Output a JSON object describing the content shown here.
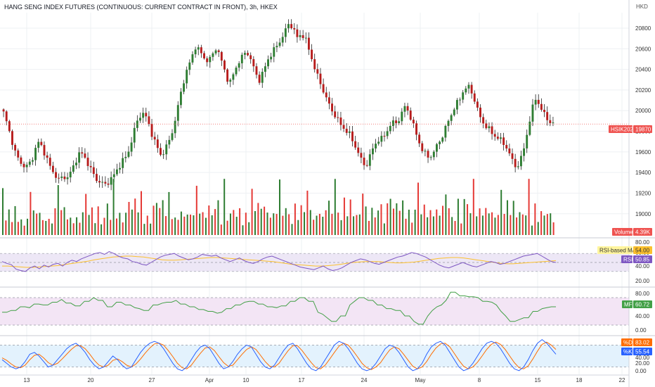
{
  "header": {
    "title": "HANG SENG INDEX FUTURES (CONTINUOUS: CURRENT CONTRACT IN FRONT), 3h, HKEX",
    "currency": "HKD"
  },
  "colors": {
    "up": "#26a69a",
    "down": "#ef5350",
    "volume_up": "#2e7d32",
    "volume_down": "#e53935",
    "rsi": "#7e57c2",
    "rsi_ma": "#fbc02d",
    "mfi": "#43a047",
    "k": "#2962ff",
    "d": "#ff6d00",
    "price_line": "#ef5350"
  },
  "chart_data": [
    {
      "type": "candlestick",
      "name": "price",
      "ylim": [
        18780,
        20950
      ],
      "yticks": [
        19000,
        19200,
        19400,
        19600,
        19800,
        20000,
        20200,
        20400,
        20600,
        20800
      ],
      "x_ticks": [
        "13",
        "20",
        "27",
        "Apr",
        "10",
        "17",
        "24",
        "May",
        "8",
        "15",
        "18",
        "22"
      ],
      "symbol_label": "HSIK2023",
      "last_price": 19870,
      "close_path": [
        19980,
        19850,
        19700,
        19560,
        19500,
        19450,
        19480,
        19560,
        19700,
        19650,
        19550,
        19450,
        19380,
        19330,
        19360,
        19350,
        19420,
        19520,
        19600,
        19550,
        19470,
        19390,
        19320,
        19300,
        19280,
        19330,
        19380,
        19450,
        19520,
        19560,
        19700,
        19860,
        19950,
        19980,
        19880,
        19750,
        19650,
        19560,
        19630,
        19720,
        19850,
        20050,
        20250,
        20380,
        20500,
        20620,
        20580,
        20520,
        20470,
        20540,
        20620,
        20500,
        20380,
        20250,
        20360,
        20460,
        20520,
        20580,
        20500,
        20380,
        20290,
        20380,
        20490,
        20560,
        20620,
        20680,
        20760,
        20850,
        20800,
        20700,
        20750,
        20680,
        20550,
        20420,
        20300,
        20200,
        20100,
        20000,
        19950,
        19870,
        19820,
        19790,
        19700,
        19620,
        19520,
        19450,
        19560,
        19660,
        19720,
        19730,
        19800,
        19880,
        19880,
        19920,
        20040,
        20000,
        19880,
        19760,
        19640,
        19580,
        19540,
        19600,
        19680,
        19750,
        19860,
        19950,
        20050,
        20100,
        20200,
        20240,
        20170,
        20050,
        19920,
        19860,
        19820,
        19760,
        19740,
        19700,
        19650,
        19560,
        19460,
        19480,
        19600,
        19800,
        20000,
        20130,
        20030,
        19960,
        19900,
        19870
      ],
      "volume_down_path": [
        0.15,
        0.25,
        0.5,
        0.2,
        0.55,
        0.35,
        0.3,
        0.6,
        0.25,
        0.4,
        0.95,
        0.3,
        0.65,
        0.5,
        0.35,
        0.45,
        0.75,
        0.3,
        0.55,
        0.4,
        0.85,
        0.5,
        0.35,
        0.7,
        0.45,
        0.6,
        0.4,
        0.9,
        0.5,
        0.35,
        0.7,
        0.55,
        0.4,
        0.75,
        0.5,
        0.65,
        0.35,
        0.85,
        0.55,
        0.45,
        0.6,
        0.4,
        0.7,
        0.5,
        0.35
      ],
      "volume_up_path": [
        0.7,
        0.2,
        0.5,
        0.35,
        0.65,
        0.25,
        0.45,
        0.3,
        0.85,
        0.4,
        0.55,
        0.3,
        0.85,
        0.25,
        0.5,
        0.6,
        0.35,
        0.8,
        0.45,
        0.3,
        0.55,
        0.4,
        0.75,
        0.35,
        0.5,
        0.3,
        0.9,
        0.45,
        0.35,
        0.6,
        0.3,
        0.85,
        0.5,
        0.4,
        0.55,
        0.3,
        0.85,
        0.45,
        0.6,
        0.35,
        0.8,
        0.5,
        0.3,
        0.4,
        0.25
      ],
      "volume_label": "Volume",
      "volume_value": "4.39K"
    },
    {
      "type": "line",
      "name": "rsi-pane",
      "ylim": [
        0,
        100
      ],
      "yticks": [
        "80.00",
        "60.00",
        "40.00",
        "20.00"
      ],
      "bands": [
        70,
        50,
        30
      ],
      "rsi_path": [
        52,
        48,
        45,
        35,
        32,
        30,
        38,
        42,
        36,
        44,
        40,
        46,
        48,
        42,
        50,
        55,
        52,
        58,
        62,
        66,
        70,
        72,
        68,
        74,
        70,
        64,
        60,
        58,
        52,
        50,
        46,
        44,
        50,
        56,
        62,
        66,
        68,
        70,
        64,
        60,
        56,
        58,
        62,
        68,
        66,
        64,
        66,
        60,
        56,
        52,
        56,
        60,
        54,
        50,
        48,
        52,
        58,
        62,
        64,
        60,
        56,
        52,
        48,
        44,
        40,
        38,
        36,
        34,
        38,
        42,
        36,
        32,
        34,
        38,
        44,
        50,
        54,
        58,
        56,
        52,
        48,
        46,
        50,
        54,
        58,
        62,
        64,
        68,
        72,
        70,
        66,
        62,
        56,
        50,
        44,
        40,
        38,
        42,
        46,
        50,
        46,
        42,
        40,
        44,
        48,
        52,
        50,
        46,
        48,
        52,
        56,
        60,
        64,
        66,
        68,
        70,
        64,
        58,
        52,
        50
      ],
      "rsi_ma_path": [
        42,
        42,
        41,
        40,
        39,
        39,
        40,
        41,
        42,
        43,
        45,
        47,
        49,
        51,
        53,
        56,
        58,
        60,
        62,
        63,
        64,
        64,
        63,
        62,
        60,
        58,
        56,
        55,
        55,
        56,
        57,
        58,
        59,
        60,
        61,
        61,
        60,
        59,
        58,
        57,
        56,
        55,
        54,
        53,
        52,
        50,
        48,
        46,
        45,
        44,
        43,
        42,
        42,
        43,
        44,
        46,
        48,
        50,
        51,
        52,
        52,
        52,
        51,
        50,
        49,
        49,
        50,
        51,
        53,
        55,
        57,
        59,
        60,
        61,
        61,
        60,
        58,
        56,
        54,
        52,
        50,
        48,
        47,
        47,
        48,
        49,
        50,
        51,
        52,
        53,
        54
      ],
      "rsi_ma_label": "RSI-based MA",
      "rsi_ma_value": "54.00",
      "rsi_label": "RSI",
      "rsi_value": "50.85"
    },
    {
      "type": "line",
      "name": "mfi-pane",
      "ylim": [
        0,
        100
      ],
      "yticks": [
        "80.00",
        "40.00",
        "0.00"
      ],
      "bands": [
        80,
        20
      ],
      "mfi_path": [
        48,
        48,
        52,
        52,
        60,
        60,
        58,
        66,
        66,
        64,
        64,
        70,
        70,
        76,
        68,
        68,
        62,
        62,
        72,
        72,
        80,
        74,
        74,
        60,
        60,
        70,
        70,
        64,
        64,
        58,
        56,
        52,
        52,
        64,
        64,
        68,
        70,
        70,
        74,
        66,
        66,
        60,
        60,
        54,
        54,
        50,
        50,
        46,
        48,
        56,
        56,
        64,
        64,
        70,
        72,
        72,
        66,
        66,
        60,
        60,
        58,
        62,
        62,
        72,
        72,
        80,
        80,
        72,
        72,
        48,
        44,
        36,
        28,
        28,
        40,
        40,
        64,
        72,
        80,
        80,
        74,
        74,
        64,
        64,
        56,
        56,
        52,
        52,
        40,
        40,
        28,
        22,
        22,
        40,
        52,
        60,
        64,
        74,
        92,
        92,
        84,
        84,
        82,
        82,
        80,
        72,
        72,
        70,
        64,
        50,
        40,
        28,
        28,
        32,
        36,
        36,
        50,
        50,
        56,
        58,
        60,
        60
      ],
      "mfi_label": "MF",
      "mfi_value": "60.72"
    },
    {
      "type": "line",
      "name": "stoch-pane",
      "ylim": [
        0,
        100
      ],
      "yticks": [
        "80.00",
        "60.00",
        "40.00",
        "20.00",
        "0.00"
      ],
      "bands": [
        80,
        20
      ],
      "k_path": [
        40,
        30,
        20,
        15,
        20,
        35,
        55,
        60,
        50,
        35,
        20,
        25,
        40,
        55,
        70,
        80,
        85,
        75,
        60,
        40,
        25,
        15,
        20,
        35,
        50,
        40,
        25,
        15,
        20,
        40,
        60,
        75,
        85,
        90,
        85,
        70,
        50,
        30,
        15,
        10,
        20,
        40,
        60,
        75,
        80,
        70,
        50,
        30,
        15,
        20,
        35,
        55,
        70,
        80,
        75,
        55,
        35,
        20,
        15,
        25,
        45,
        65,
        80,
        85,
        70,
        50,
        30,
        15,
        10,
        20,
        40,
        60,
        80,
        90,
        85,
        70,
        50,
        30,
        15,
        10,
        15,
        30,
        50,
        70,
        80,
        75,
        60,
        40,
        20,
        10,
        15,
        30,
        55,
        75,
        85,
        90,
        80,
        60,
        40,
        20,
        10,
        15,
        30,
        50,
        70,
        85,
        90,
        85,
        70,
        50,
        30,
        15,
        10,
        20,
        40,
        65,
        85,
        95,
        85,
        70,
        55
      ],
      "d_path": [
        45,
        38,
        28,
        20,
        18,
        25,
        40,
        52,
        55,
        45,
        32,
        25,
        30,
        42,
        55,
        68,
        78,
        78,
        70,
        55,
        38,
        25,
        20,
        25,
        38,
        42,
        35,
        25,
        20,
        28,
        42,
        58,
        72,
        83,
        85,
        80,
        65,
        48,
        30,
        18,
        15,
        25,
        42,
        58,
        72,
        75,
        65,
        48,
        32,
        22,
        25,
        40,
        55,
        68,
        75,
        68,
        52,
        35,
        22,
        20,
        30,
        48,
        65,
        78,
        78,
        65,
        48,
        32,
        18,
        15,
        25,
        42,
        60,
        77,
        85,
        80,
        65,
        48,
        30,
        18,
        13,
        20,
        32,
        50,
        67,
        75,
        70,
        55,
        38,
        22,
        15,
        20,
        35,
        55,
        72,
        83,
        85,
        75,
        57,
        38,
        22,
        15,
        20,
        33,
        50,
        68,
        82,
        88,
        82,
        68,
        50,
        32,
        18,
        15,
        23,
        42,
        63,
        82,
        88,
        80,
        68
      ],
      "d_label": "%D",
      "d_value": "83.02",
      "k_label": "%K",
      "k_value": "55.54"
    }
  ]
}
